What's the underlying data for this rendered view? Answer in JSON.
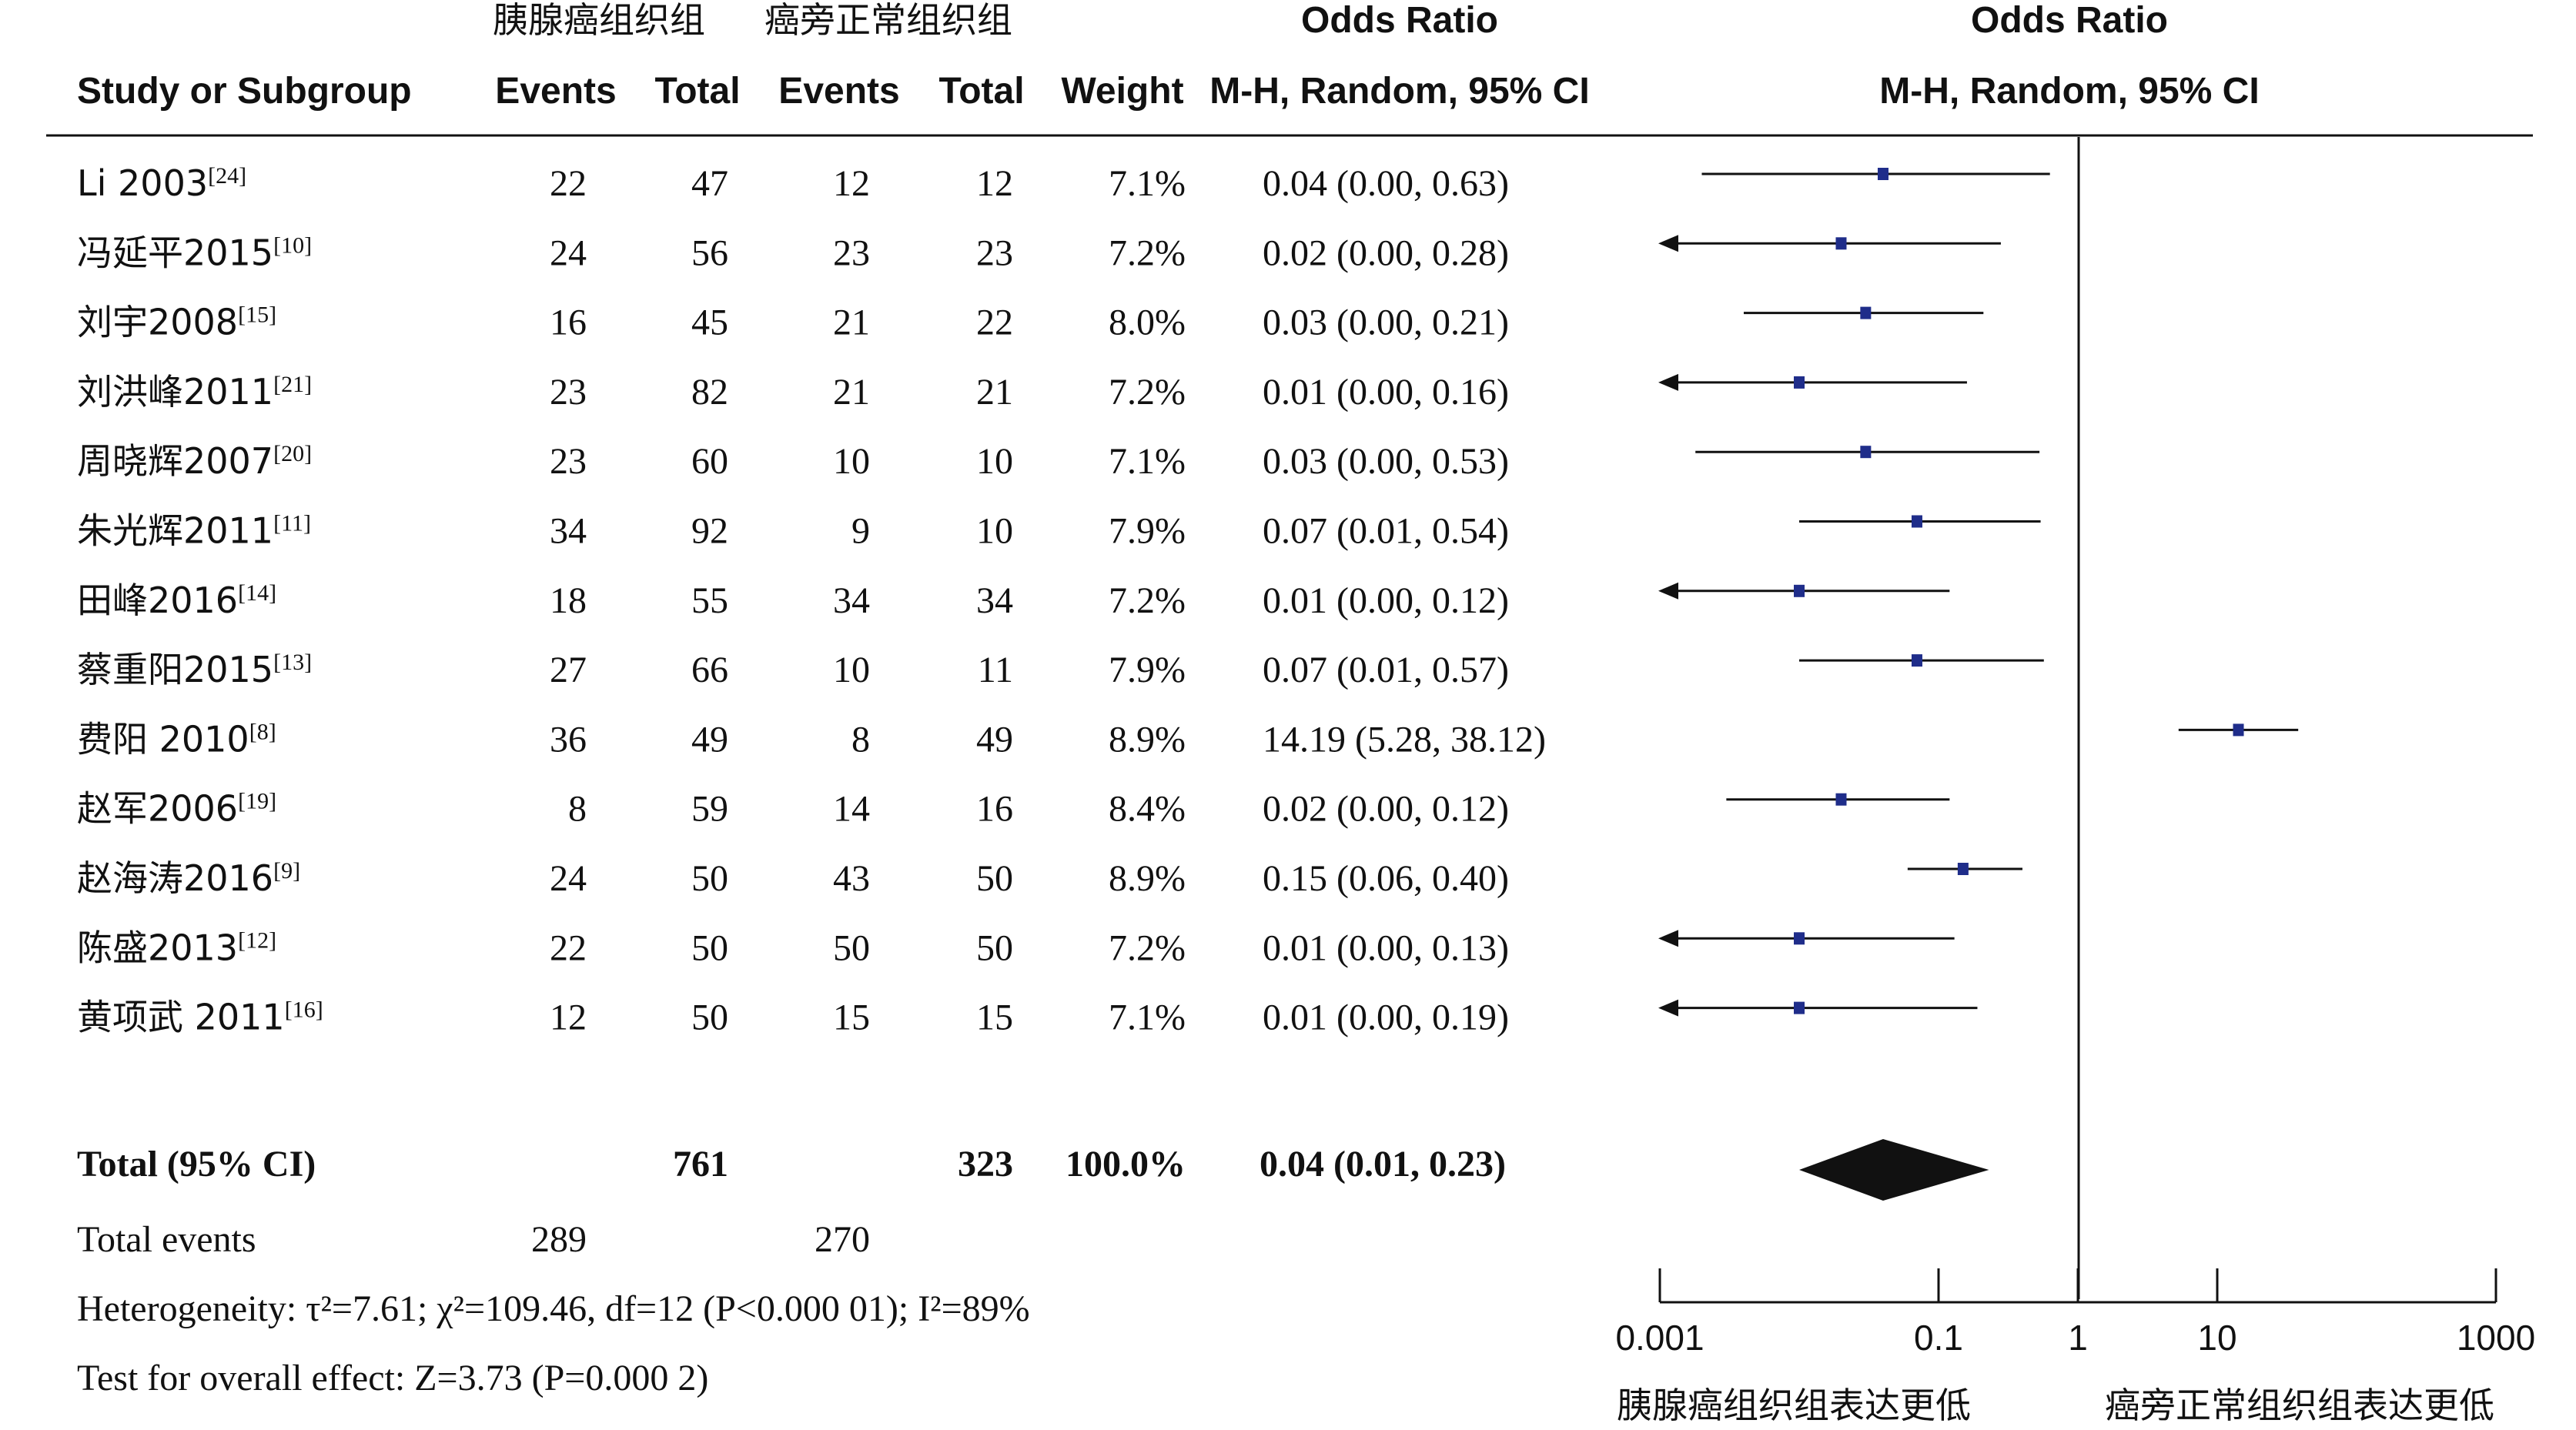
{
  "headers": {
    "group1": "胰腺癌组织组",
    "group2": "癌旁正常组织组",
    "or_top": "Odds Ratio",
    "or_sub": "M-H, Random, 95% CI",
    "plot_top": "Odds Ratio",
    "plot_sub": "M-H, Random, 95% CI",
    "study": "Study or Subgroup",
    "events1": "Events",
    "total1": "Total",
    "events2": "Events",
    "total2": "Total",
    "weight": "Weight"
  },
  "chart_data": {
    "type": "forest",
    "x_scale": "log",
    "xlim": [
      0.001,
      1000
    ],
    "ticks": [
      "0.001",
      "0.1",
      "1",
      "10",
      "1000"
    ],
    "favours_left": "胰腺癌组织组表达更低",
    "favours_right": "癌旁正常组织组表达更低",
    "studies": [
      {
        "name": "Li 2003",
        "ref": "[24]",
        "e1": "22",
        "t1": "47",
        "e2": "12",
        "t2": "12",
        "weight": "7.1%",
        "ci_text": "0.04 (0.00, 0.63)",
        "or": 0.04,
        "lo": 0.002,
        "hi": 0.63
      },
      {
        "name": "冯延平2015",
        "ref": "[10]",
        "e1": "24",
        "t1": "56",
        "e2": "23",
        "t2": "23",
        "weight": "7.2%",
        "ci_text": "0.02 (0.00, 0.28)",
        "or": 0.02,
        "lo": 0.0008,
        "hi": 0.28
      },
      {
        "name": "刘宇2008",
        "ref": "[15]",
        "e1": "16",
        "t1": "45",
        "e2": "21",
        "t2": "22",
        "weight": "8.0%",
        "ci_text": "0.03 (0.00, 0.21)",
        "or": 0.03,
        "lo": 0.004,
        "hi": 0.21
      },
      {
        "name": "刘洪峰2011",
        "ref": "[21]",
        "e1": "23",
        "t1": "82",
        "e2": "21",
        "t2": "21",
        "weight": "7.2%",
        "ci_text": "0.01 (0.00, 0.16)",
        "or": 0.01,
        "lo": 0.0008,
        "hi": 0.16
      },
      {
        "name": "周晓辉2007",
        "ref": "[20]",
        "e1": "23",
        "t1": "60",
        "e2": "10",
        "t2": "10",
        "weight": "7.1%",
        "ci_text": "0.03 (0.00, 0.53)",
        "or": 0.03,
        "lo": 0.0018,
        "hi": 0.53
      },
      {
        "name": "朱光辉2011",
        "ref": "[11]",
        "e1": "34",
        "t1": "92",
        "e2": "9",
        "t2": "10",
        "weight": "7.9%",
        "ci_text": "0.07 (0.01, 0.54)",
        "or": 0.07,
        "lo": 0.01,
        "hi": 0.54
      },
      {
        "name": "田峰2016",
        "ref": "[14]",
        "e1": "18",
        "t1": "55",
        "e2": "34",
        "t2": "34",
        "weight": "7.2%",
        "ci_text": "0.01 (0.00, 0.12)",
        "or": 0.01,
        "lo": 0.0008,
        "hi": 0.12
      },
      {
        "name": "蔡重阳2015",
        "ref": "[13]",
        "e1": "27",
        "t1": "66",
        "e2": "10",
        "t2": "11",
        "weight": "7.9%",
        "ci_text": "0.07 (0.01, 0.57)",
        "or": 0.07,
        "lo": 0.01,
        "hi": 0.57
      },
      {
        "name": "费阳 2010",
        "ref": "[8]",
        "e1": "36",
        "t1": "49",
        "e2": "8",
        "t2": "49",
        "weight": "8.9%",
        "ci_text": "14.19 (5.28, 38.12)",
        "or": 14.19,
        "lo": 5.28,
        "hi": 38.12
      },
      {
        "name": "赵军2006",
        "ref": "[19]",
        "e1": "8",
        "t1": "59",
        "e2": "14",
        "t2": "16",
        "weight": "8.4%",
        "ci_text": "0.02 (0.00, 0.12)",
        "or": 0.02,
        "lo": 0.003,
        "hi": 0.12
      },
      {
        "name": "赵海涛2016",
        "ref": "[9]",
        "e1": "24",
        "t1": "50",
        "e2": "43",
        "t2": "50",
        "weight": "8.9%",
        "ci_text": "0.15 (0.06, 0.40)",
        "or": 0.15,
        "lo": 0.06,
        "hi": 0.4
      },
      {
        "name": "陈盛2013",
        "ref": "[12]",
        "e1": "22",
        "t1": "50",
        "e2": "50",
        "t2": "50",
        "weight": "7.2%",
        "ci_text": "0.01 (0.00, 0.13)",
        "or": 0.01,
        "lo": 0.0008,
        "hi": 0.13
      },
      {
        "name": "黄项武 2011",
        "ref": "[16]",
        "e1": "12",
        "t1": "50",
        "e2": "15",
        "t2": "15",
        "weight": "7.1%",
        "ci_text": "0.01 (0.00, 0.19)",
        "or": 0.01,
        "lo": 0.0008,
        "hi": 0.19
      }
    ],
    "total": {
      "label": "Total (95% CI)",
      "t1": "761",
      "t2": "323",
      "weight": "100.0%",
      "ci_text": "0.04 (0.01, 0.23)",
      "or": 0.04,
      "lo": 0.01,
      "hi": 0.23
    },
    "total_events": {
      "label": "Total events",
      "e1": "289",
      "e2": "270"
    },
    "heterogeneity": "Heterogeneity: τ²=7.61; χ²=109.46, df=12 (P<0.000 01); I²=89%",
    "overall_effect": "Test for overall effect: Z=3.73 (P=0.000 2)"
  },
  "colors": {
    "marker": "#1f2d8a",
    "ink": "#111111",
    "diamond": "#111111"
  }
}
